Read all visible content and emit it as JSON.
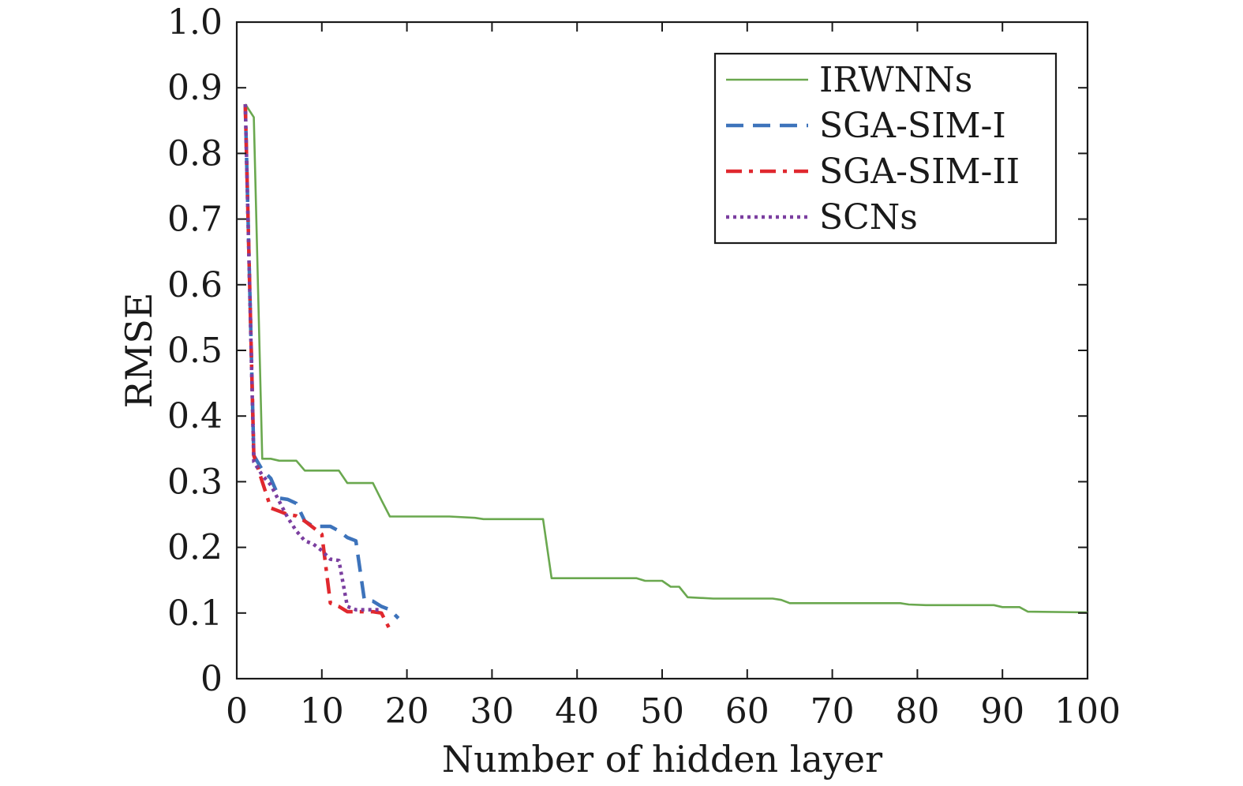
{
  "chart_data": {
    "type": "line",
    "title": "",
    "xlabel": "Number of hidden layer",
    "ylabel": "RMSE",
    "xlim": [
      0,
      100
    ],
    "ylim": [
      0,
      1.0
    ],
    "xticks": [
      0,
      10,
      20,
      30,
      40,
      50,
      60,
      70,
      80,
      90,
      100
    ],
    "xtick_labels": [
      "0",
      "10",
      "20",
      "30",
      "40",
      "50",
      "60",
      "70",
      "80",
      "90",
      "100"
    ],
    "yticks": [
      0,
      0.1,
      0.2,
      0.3,
      0.4,
      0.5,
      0.6,
      0.7,
      0.8,
      0.9,
      1.0
    ],
    "ytick_labels": [
      "0",
      "0.1",
      "0.2",
      "0.3",
      "0.4",
      "0.5",
      "0.6",
      "0.7",
      "0.8",
      "0.9",
      "1.0"
    ],
    "grid": false,
    "legend_position": "top-right",
    "series": [
      {
        "name": "IRWNNs",
        "color": "#6aa84f",
        "dash": "solid",
        "x": [
          1,
          2,
          3,
          4,
          5,
          7,
          8,
          12,
          13,
          16,
          17,
          18,
          25,
          28,
          29,
          36,
          37,
          47,
          48,
          50,
          51,
          52,
          53,
          56,
          63,
          64,
          65,
          78,
          79,
          81,
          89,
          90,
          92,
          93,
          100
        ],
        "y": [
          0.875,
          0.855,
          0.335,
          0.335,
          0.332,
          0.332,
          0.317,
          0.317,
          0.298,
          0.298,
          0.272,
          0.247,
          0.247,
          0.245,
          0.243,
          0.243,
          0.153,
          0.153,
          0.149,
          0.149,
          0.14,
          0.14,
          0.124,
          0.122,
          0.122,
          0.12,
          0.115,
          0.115,
          0.113,
          0.112,
          0.112,
          0.109,
          0.109,
          0.102,
          0.101
        ]
      },
      {
        "name": "SGA-SIM-I",
        "color": "#3d73bb",
        "dash": "dashed",
        "x": [
          1,
          2,
          3,
          4,
          5,
          6,
          7,
          8,
          9,
          10,
          11,
          12,
          13,
          14,
          15,
          16,
          17,
          18,
          19
        ],
        "y": [
          0.875,
          0.34,
          0.318,
          0.305,
          0.275,
          0.273,
          0.267,
          0.24,
          0.232,
          0.232,
          0.232,
          0.225,
          0.215,
          0.21,
          0.12,
          0.118,
          0.11,
          0.105,
          0.092
        ]
      },
      {
        "name": "SGA-SIM-II",
        "color": "#e0282e",
        "dash": "dashdot",
        "x": [
          1,
          2,
          3,
          4,
          5,
          6,
          7,
          8,
          9,
          10,
          11,
          12,
          13,
          14,
          15,
          16,
          17,
          18
        ],
        "y": [
          0.875,
          0.34,
          0.3,
          0.26,
          0.255,
          0.25,
          0.248,
          0.24,
          0.23,
          0.22,
          0.115,
          0.11,
          0.102,
          0.102,
          0.102,
          0.102,
          0.1,
          0.075
        ]
      },
      {
        "name": "SCNs",
        "color": "#7b3fa0",
        "dash": "dotted",
        "x": [
          1,
          2,
          3,
          4,
          5,
          6,
          7,
          8,
          9,
          10,
          11,
          12,
          13,
          14,
          15,
          16,
          17
        ],
        "y": [
          0.875,
          0.33,
          0.31,
          0.295,
          0.27,
          0.245,
          0.225,
          0.21,
          0.205,
          0.195,
          0.182,
          0.18,
          0.11,
          0.105,
          0.105,
          0.105,
          0.105
        ]
      }
    ]
  }
}
